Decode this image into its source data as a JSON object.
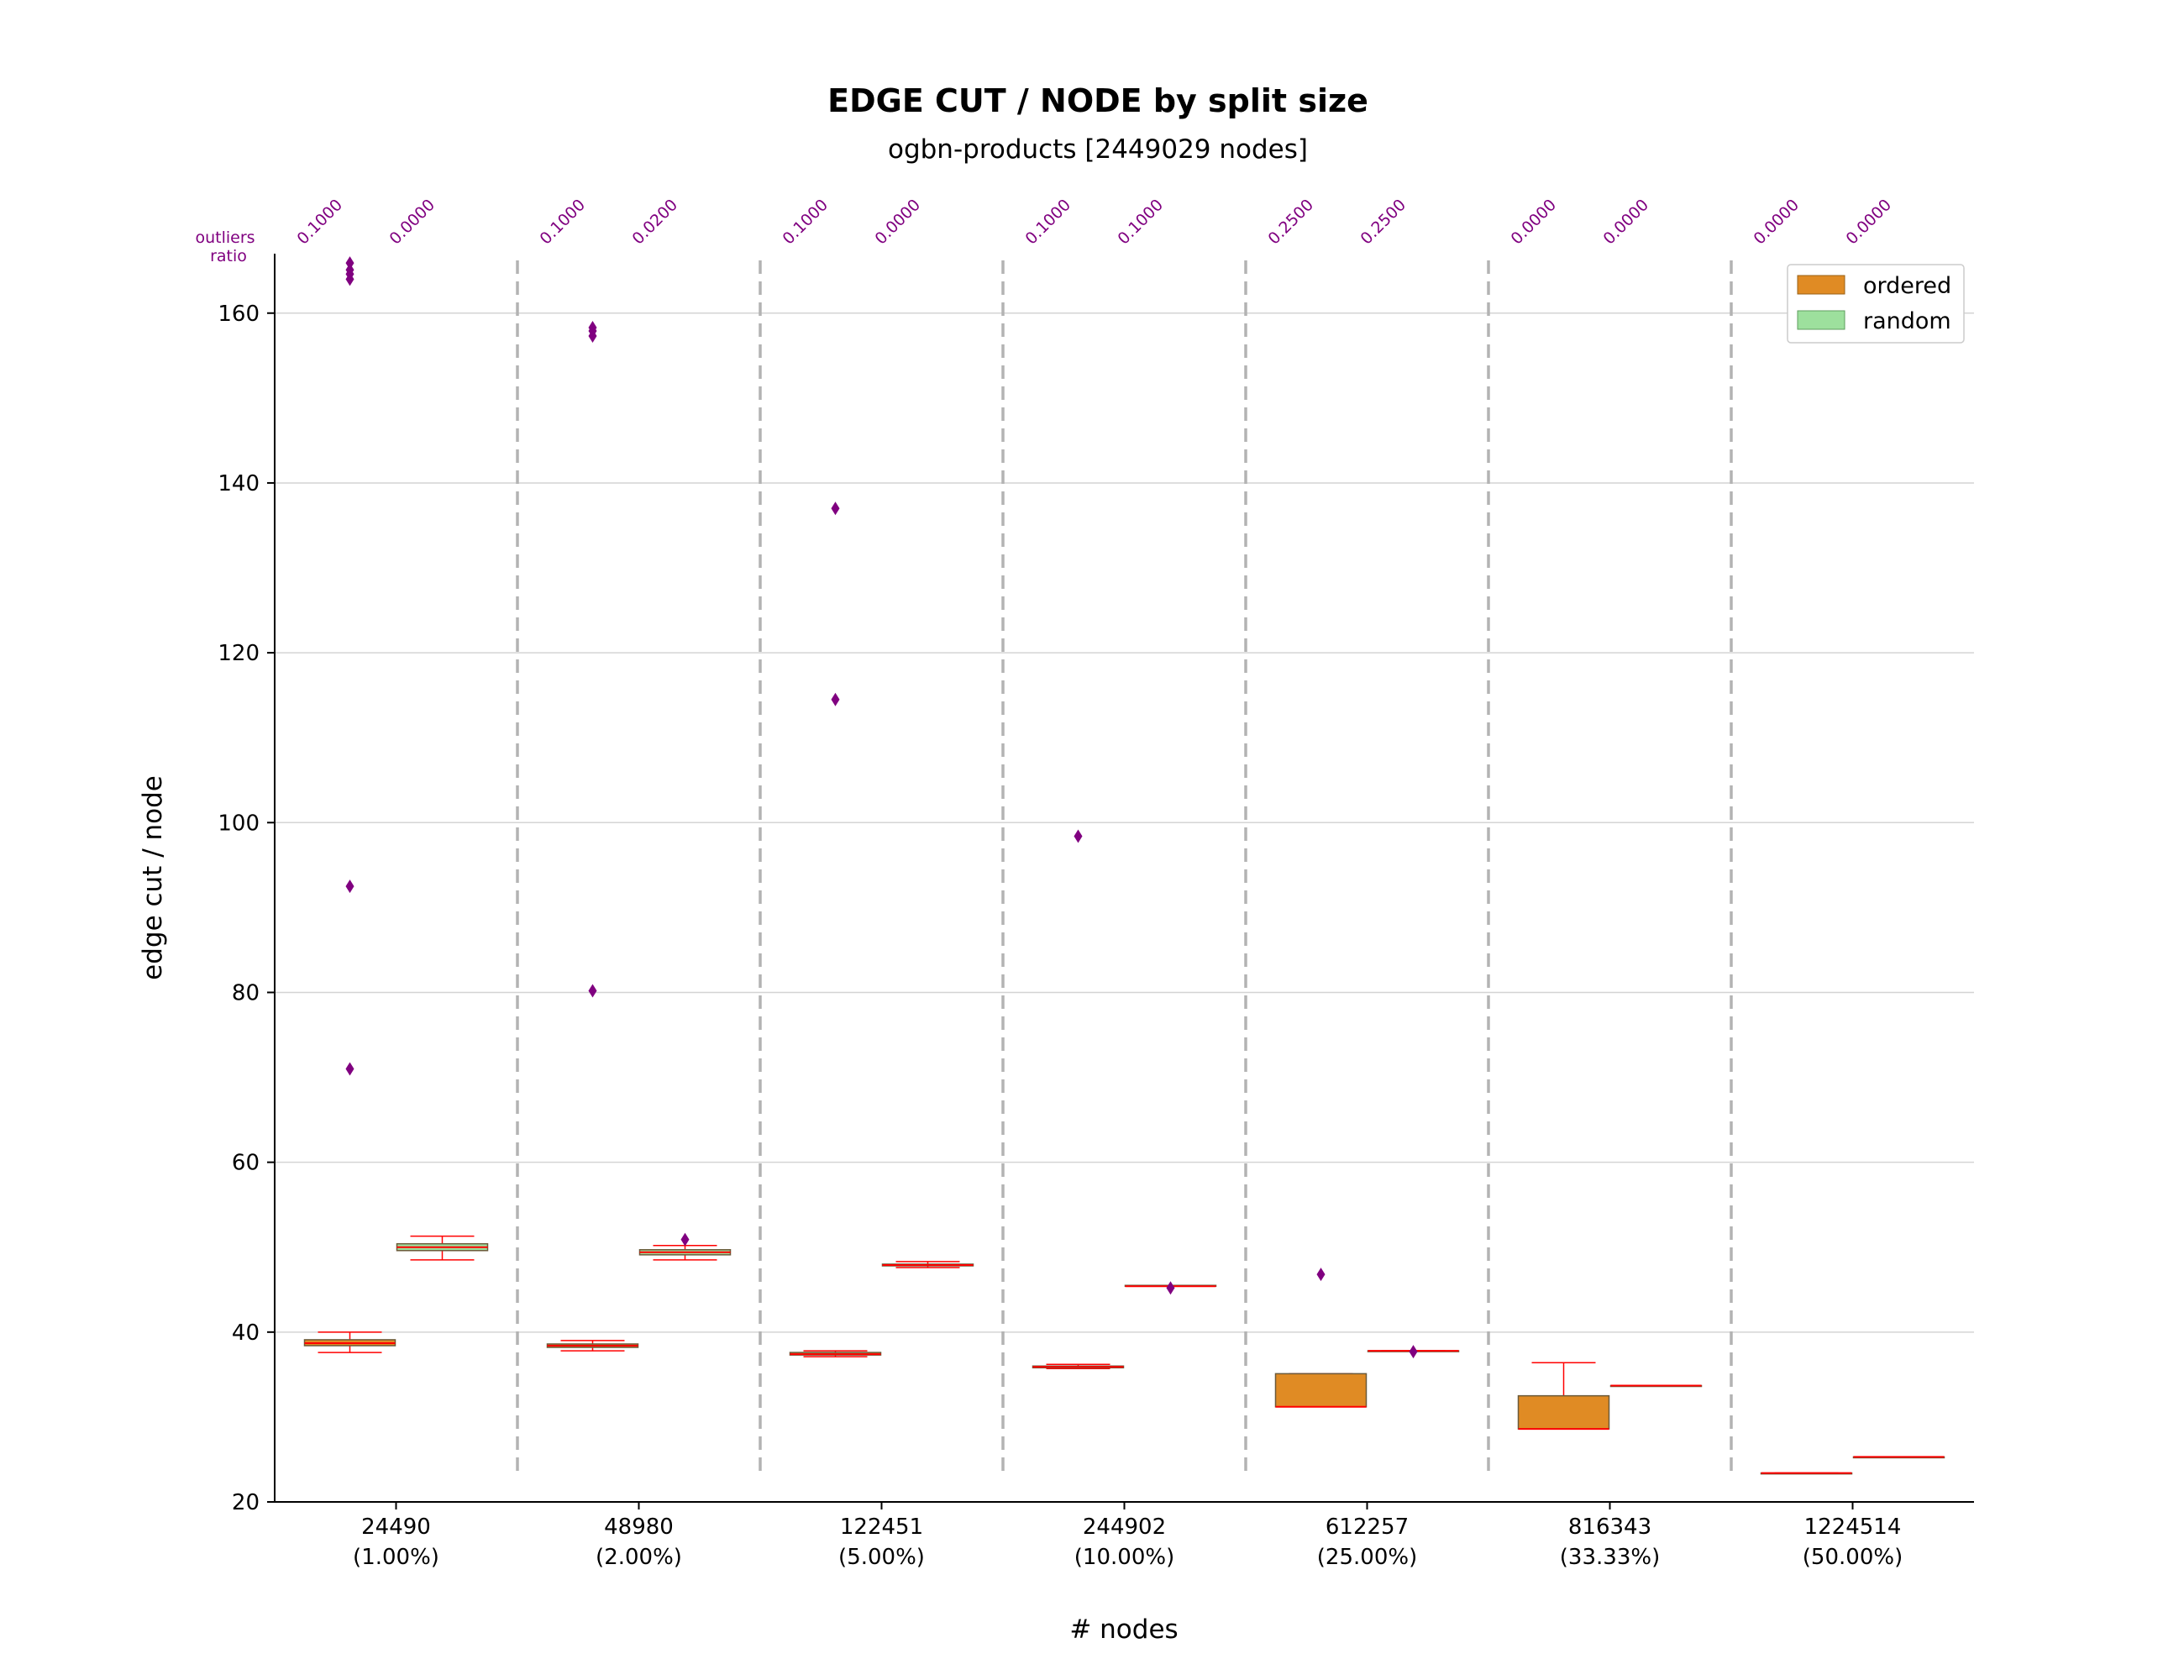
{
  "chart_data": {
    "type": "box",
    "title": "EDGE CUT / NODE by split size",
    "subtitle": "ogbn-products [2449029 nodes]",
    "xlabel": "# nodes",
    "ylabel": "edge cut / node",
    "ylim": [
      20,
      167
    ],
    "yticks": [
      20,
      40,
      60,
      80,
      100,
      120,
      140,
      160
    ],
    "grid": "horizontal",
    "legend_position": "upper right",
    "outliers_label_line1": "outliers",
    "outliers_label_line2": "ratio",
    "categories": [
      {
        "label": "24490",
        "sublabel": "(1.00%)"
      },
      {
        "label": "48980",
        "sublabel": "(2.00%)"
      },
      {
        "label": "122451",
        "sublabel": "(5.00%)"
      },
      {
        "label": "244902",
        "sublabel": "(10.00%)"
      },
      {
        "label": "612257",
        "sublabel": "(25.00%)"
      },
      {
        "label": "816343",
        "sublabel": "(33.33%)"
      },
      {
        "label": "1224514",
        "sublabel": "(50.00%)"
      }
    ],
    "series": [
      {
        "name": "ordered",
        "color": "#e08b24",
        "outlier_ratios": [
          "0.1000",
          "0.1000",
          "0.1000",
          "0.1000",
          "0.2500",
          "0.0000",
          "0.0000"
        ],
        "boxes": [
          {
            "whislo": 37.6,
            "q1": 38.4,
            "med": 38.7,
            "q3": 39.1,
            "whishi": 40.0,
            "fliers": [
              71.0,
              92.5,
              164.0,
              164.6,
              165.1,
              165.9
            ]
          },
          {
            "whislo": 37.8,
            "q1": 38.2,
            "med": 38.4,
            "q3": 38.6,
            "whishi": 39.0,
            "fliers": [
              80.2,
              157.3,
              157.9,
              158.3
            ]
          },
          {
            "whislo": 37.1,
            "q1": 37.3,
            "med": 37.4,
            "q3": 37.6,
            "whishi": 37.8,
            "fliers": [
              114.5,
              137.0
            ]
          },
          {
            "whislo": 35.7,
            "q1": 35.8,
            "med": 35.9,
            "q3": 36.0,
            "whishi": 36.2,
            "fliers": [
              98.4
            ]
          },
          {
            "whislo": 31.2,
            "q1": 31.2,
            "med": 31.2,
            "q3": 35.1,
            "whishi": 35.1,
            "fliers": [
              46.8
            ]
          },
          {
            "whislo": 28.6,
            "q1": 28.6,
            "med": 28.6,
            "q3": 32.5,
            "whishi": 36.4,
            "fliers": []
          },
          {
            "whislo": 23.4,
            "q1": 23.4,
            "med": 23.4,
            "q3": 23.4,
            "whishi": 23.4,
            "fliers": []
          }
        ]
      },
      {
        "name": "random",
        "color": "#9de09d",
        "outlier_ratios": [
          "0.0000",
          "0.0200",
          "0.0000",
          "0.1000",
          "0.2500",
          "0.0000",
          "0.0000"
        ],
        "boxes": [
          {
            "whislo": 48.5,
            "q1": 49.6,
            "med": 50.0,
            "q3": 50.4,
            "whishi": 51.3,
            "fliers": []
          },
          {
            "whislo": 48.5,
            "q1": 49.1,
            "med": 49.4,
            "q3": 49.7,
            "whishi": 50.2,
            "fliers": [
              50.9
            ]
          },
          {
            "whislo": 47.6,
            "q1": 47.8,
            "med": 47.9,
            "q3": 48.0,
            "whishi": 48.3,
            "fliers": []
          },
          {
            "whislo": 45.4,
            "q1": 45.4,
            "med": 45.4,
            "q3": 45.5,
            "whishi": 45.5,
            "fliers": [
              45.2
            ]
          },
          {
            "whislo": 37.8,
            "q1": 37.8,
            "med": 37.8,
            "q3": 37.8,
            "whishi": 37.8,
            "fliers": [
              37.7
            ]
          },
          {
            "whislo": 33.7,
            "q1": 33.7,
            "med": 33.7,
            "q3": 33.7,
            "whishi": 33.7,
            "fliers": []
          },
          {
            "whislo": 25.3,
            "q1": 25.3,
            "med": 25.3,
            "q3": 25.3,
            "whishi": 25.3,
            "fliers": []
          }
        ]
      }
    ],
    "whisker_color": "#ff0000",
    "flier_color": "#800080",
    "separator_color": "#b3b3b3"
  }
}
